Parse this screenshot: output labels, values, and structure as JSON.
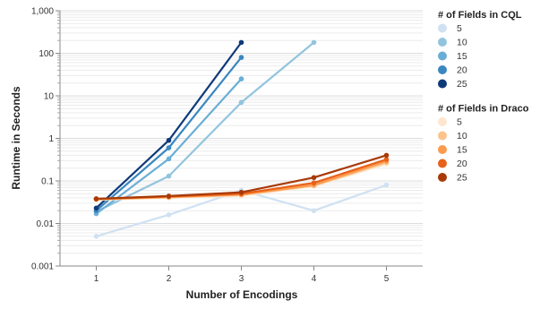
{
  "chart_data": {
    "type": "line",
    "xlabel": "Number of Encodings",
    "ylabel": "Runtime in Seconds",
    "x": [
      1,
      2,
      3,
      4,
      5
    ],
    "xlim": [
      0.5,
      5.5
    ],
    "ylim": [
      0.001,
      1000
    ],
    "yscale": "log",
    "x_ticks": [
      "1",
      "2",
      "3",
      "4",
      "5"
    ],
    "y_ticks": [
      {
        "value": 0.001,
        "label": "0.001"
      },
      {
        "value": 0.01,
        "label": "0.01"
      },
      {
        "value": 0.1,
        "label": "0.1"
      },
      {
        "value": 1,
        "label": "1"
      },
      {
        "value": 10,
        "label": "10"
      },
      {
        "value": 100,
        "label": "100"
      },
      {
        "value": 1000,
        "label": "1,000"
      }
    ],
    "grid": true,
    "legend_position": "right",
    "legends": [
      {
        "title": "# of Fields in CQL",
        "entries": [
          {
            "label": "5",
            "color": "#cfe1f2"
          },
          {
            "label": "10",
            "color": "#93c4de"
          },
          {
            "label": "15",
            "color": "#6aaed6"
          },
          {
            "label": "20",
            "color": "#3a87c0"
          },
          {
            "label": "25",
            "color": "#0f3a7a"
          }
        ]
      },
      {
        "title": "# of Fields in Draco",
        "entries": [
          {
            "label": "5",
            "color": "#fde6ce"
          },
          {
            "label": "10",
            "color": "#fdc38d"
          },
          {
            "label": "15",
            "color": "#fd9a4c"
          },
          {
            "label": "20",
            "color": "#e8601a"
          },
          {
            "label": "25",
            "color": "#a83a07"
          }
        ]
      }
    ],
    "series": [
      {
        "group": "CQL",
        "name": "5",
        "color": "#cfe1f2",
        "x": [
          1,
          2,
          3,
          4,
          5
        ],
        "values": [
          0.005,
          0.016,
          0.06,
          0.02,
          0.08
        ]
      },
      {
        "group": "CQL",
        "name": "10",
        "color": "#93c4de",
        "x": [
          1,
          2,
          3,
          4
        ],
        "values": [
          0.019,
          0.13,
          7,
          180
        ]
      },
      {
        "group": "CQL",
        "name": "15",
        "color": "#6aaed6",
        "x": [
          1,
          2,
          3
        ],
        "values": [
          0.017,
          0.33,
          25
        ]
      },
      {
        "group": "CQL",
        "name": "20",
        "color": "#3a87c0",
        "x": [
          1,
          2,
          3
        ],
        "values": [
          0.02,
          0.6,
          80
        ]
      },
      {
        "group": "CQL",
        "name": "25",
        "color": "#0f3a7a",
        "x": [
          1,
          2,
          3
        ],
        "values": [
          0.023,
          0.9,
          180
        ]
      },
      {
        "group": "Draco",
        "name": "5",
        "color": "#fde6ce",
        "x": [
          1,
          2,
          3,
          4,
          5
        ],
        "values": [
          0.036,
          0.04,
          0.045,
          0.075,
          0.25
        ]
      },
      {
        "group": "Draco",
        "name": "10",
        "color": "#fdc38d",
        "x": [
          1,
          2,
          3,
          4,
          5
        ],
        "values": [
          0.037,
          0.041,
          0.047,
          0.078,
          0.27
        ]
      },
      {
        "group": "Draco",
        "name": "15",
        "color": "#fd9a4c",
        "x": [
          1,
          2,
          3,
          4,
          5
        ],
        "values": [
          0.037,
          0.042,
          0.048,
          0.08,
          0.29
        ]
      },
      {
        "group": "Draco",
        "name": "20",
        "color": "#e8601a",
        "x": [
          1,
          2,
          3,
          4,
          5
        ],
        "values": [
          0.038,
          0.043,
          0.05,
          0.09,
          0.32
        ]
      },
      {
        "group": "Draco",
        "name": "25",
        "color": "#a83a07",
        "x": [
          1,
          2,
          3,
          4,
          5
        ],
        "values": [
          0.038,
          0.044,
          0.054,
          0.12,
          0.4
        ]
      }
    ]
  }
}
